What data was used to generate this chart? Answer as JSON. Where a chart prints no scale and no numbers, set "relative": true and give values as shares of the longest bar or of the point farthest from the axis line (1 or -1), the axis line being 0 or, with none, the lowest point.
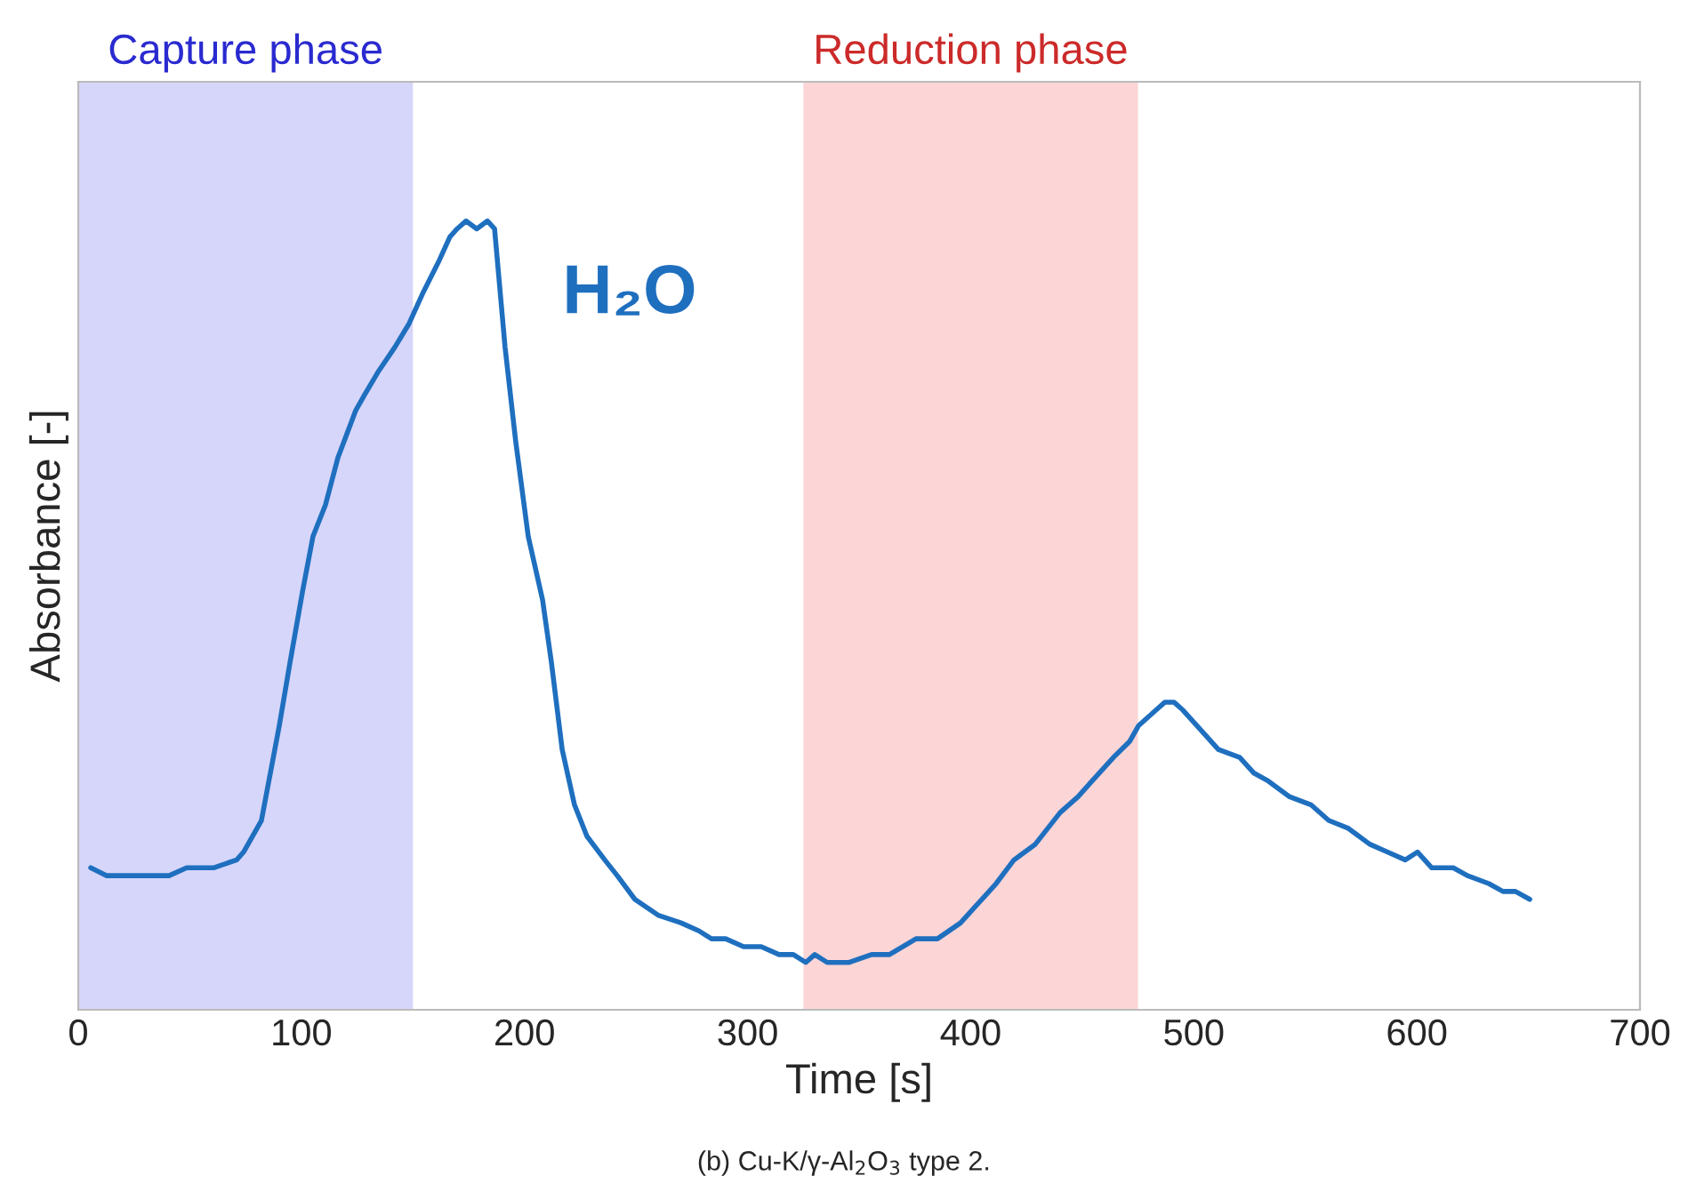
{
  "chart_data": {
    "type": "line",
    "relative": true,
    "xlabel": "Time [s]",
    "ylabel": "Absorbance [-]",
    "xlim": [
      0,
      700
    ],
    "xticks": [
      0,
      100,
      200,
      300,
      400,
      500,
      600,
      700
    ],
    "tick_labels": "x",
    "grid": false,
    "legend": false,
    "bands": [
      {
        "axis": "x",
        "from": 0,
        "to": 150,
        "label": "Capture phase",
        "color": "#d6d6fa"
      },
      {
        "axis": "x",
        "from": 325,
        "to": 475,
        "label": "Reduction phase",
        "color": "#fcd5d7"
      }
    ],
    "annotations": [
      "H₂O",
      "(b) Cu-K/γ-Al$_{2}$O$_{3}$ type 2."
    ],
    "series": [
      {
        "color": "#1f6fbf",
        "x": [
          5.6,
          12.8,
          20.7,
          25.5,
          32.7,
          40.7,
          48.6,
          60.6,
          71.0,
          74.1,
          78.1,
          82.1,
          86.1,
          90.1,
          94.9,
          100.5,
          105.2,
          110.8,
          116.4,
          124.4,
          128.4,
          134.7,
          141.9,
          148.3,
          154.7,
          161.8,
          166.6,
          169.8,
          173.8,
          178.6,
          183.4,
          186.6,
          191.3,
          196.1,
          201.7,
          208.1,
          212.1,
          216.9,
          222.4,
          228.0,
          236.0,
          241.6,
          249.5,
          259.9,
          270.3,
          278.2,
          283.8,
          290.2,
          298.2,
          306.1,
          314.1,
          320.5,
          326.1,
          330.1,
          335.7,
          345.3,
          355.6,
          363.6,
          375.5,
          385.1,
          395.4,
          405.0,
          411.4,
          419.4,
          429.0,
          440.1,
          448.1,
          454.4,
          464.0,
          471.2,
          475.2,
          483.1,
          487.1,
          491.1,
          495.1,
          501.5,
          511.0,
          520.6,
          527.0,
          533.4,
          543.0,
          552.5,
          560.5,
          569.3,
          578.8,
          586.8,
          594.8,
          600.3,
          606.7,
          616.3,
          622.7,
          632.2,
          638.6,
          644.2,
          650.6
        ],
        "values": [
          0.18,
          0.17,
          0.17,
          0.17,
          0.17,
          0.17,
          0.18,
          0.18,
          0.19,
          0.2,
          0.22,
          0.24,
          0.3,
          0.36,
          0.44,
          0.53,
          0.6,
          0.64,
          0.7,
          0.76,
          0.78,
          0.81,
          0.84,
          0.87,
          0.91,
          0.95,
          0.98,
          0.99,
          1.0,
          0.99,
          1.0,
          0.99,
          0.84,
          0.72,
          0.6,
          0.52,
          0.44,
          0.33,
          0.26,
          0.22,
          0.19,
          0.17,
          0.14,
          0.12,
          0.11,
          0.1,
          0.09,
          0.09,
          0.08,
          0.08,
          0.07,
          0.07,
          0.06,
          0.07,
          0.06,
          0.06,
          0.07,
          0.07,
          0.09,
          0.09,
          0.11,
          0.14,
          0.16,
          0.19,
          0.21,
          0.25,
          0.27,
          0.29,
          0.32,
          0.34,
          0.36,
          0.38,
          0.39,
          0.39,
          0.38,
          0.36,
          0.33,
          0.32,
          0.3,
          0.29,
          0.27,
          0.26,
          0.24,
          0.23,
          0.21,
          0.2,
          0.19,
          0.2,
          0.18,
          0.18,
          0.17,
          0.16,
          0.15,
          0.15,
          0.14
        ]
      }
    ]
  }
}
